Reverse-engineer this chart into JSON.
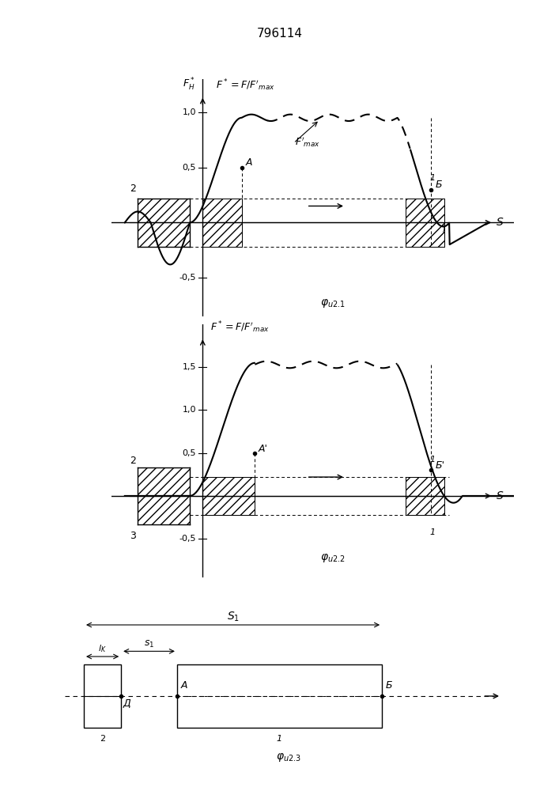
{
  "title": "796114",
  "fig1_ylabel": "F*_H",
  "fig1_label": "F* = F/F'max",
  "fig1_caption": "φu2.1",
  "fig2_label": "F* = F/F'max",
  "fig2_caption": "φu2.2",
  "fig3_caption": "φu2.3",
  "background": "#ffffff",
  "line_color": "#000000"
}
